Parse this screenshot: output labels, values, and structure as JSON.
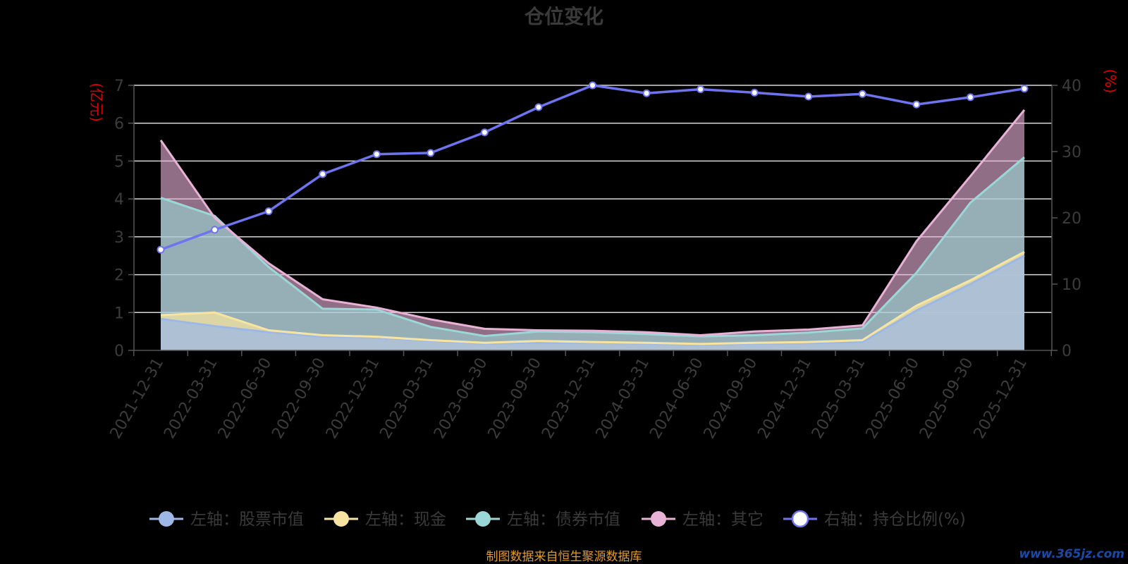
{
  "chart_data": {
    "type": "area",
    "title": "仓位变化",
    "y_left_label": "(亿元)",
    "y_right_label": "(%)",
    "ylim_left": [
      0,
      7
    ],
    "ylim_right": [
      0,
      40
    ],
    "y_left_ticks": [
      "0",
      "1",
      "2",
      "3",
      "4",
      "5",
      "6",
      "7"
    ],
    "y_right_ticks": [
      "0",
      "10",
      "20",
      "30",
      "40"
    ],
    "grid": true,
    "legend_position": "bottom",
    "categories": [
      "2021-12-31",
      "2022-03-31",
      "2022-06-30",
      "2022-09-30",
      "2022-12-31",
      "2023-03-31",
      "2023-06-30",
      "2023-09-30",
      "2023-12-31",
      "2024-03-31",
      "2024-06-30",
      "2024-09-30",
      "2024-12-31",
      "2025-03-31",
      "2025-06-30",
      "2025-09-30",
      "2025-12-31"
    ],
    "series": [
      {
        "name": "左轴：股票市值",
        "axis": "left",
        "color": "#9db8e6",
        "values": [
          0.83,
          0.64,
          0.48,
          0.36,
          0.34,
          0.25,
          0.18,
          0.2,
          0.2,
          0.18,
          0.15,
          0.18,
          0.19,
          0.22,
          1.05,
          1.75,
          2.5
        ]
      },
      {
        "name": "左轴：现金",
        "axis": "left",
        "color": "#f6e4a0",
        "values": [
          0.93,
          1.0,
          0.53,
          0.4,
          0.36,
          0.27,
          0.2,
          0.25,
          0.22,
          0.2,
          0.17,
          0.2,
          0.22,
          0.27,
          1.18,
          1.85,
          2.6
        ]
      },
      {
        "name": "左轴：债券市值",
        "axis": "left",
        "color": "#9ad7d6",
        "values": [
          4.03,
          3.55,
          2.2,
          1.1,
          1.08,
          0.62,
          0.38,
          0.5,
          0.48,
          0.43,
          0.37,
          0.4,
          0.47,
          0.58,
          2.05,
          3.9,
          5.1
        ]
      },
      {
        "name": "左轴：其它",
        "axis": "left",
        "color": "#e8b2d6",
        "values": [
          5.55,
          3.5,
          2.3,
          1.35,
          1.13,
          0.82,
          0.57,
          0.53,
          0.52,
          0.48,
          0.4,
          0.5,
          0.55,
          0.66,
          2.88,
          4.6,
          6.35
        ]
      },
      {
        "name": "右轴：持仓比例(%)",
        "axis": "right",
        "color": "#6e74f0",
        "values": [
          15.2,
          18.2,
          21.0,
          26.6,
          29.6,
          29.8,
          32.9,
          36.7,
          40.0,
          38.8,
          39.4,
          38.9,
          38.3,
          38.7,
          37.1,
          38.2,
          39.5
        ]
      }
    ]
  },
  "footer": {
    "source": "制图数据来自恒生聚源数据库",
    "watermark": "www.365jz.com"
  }
}
